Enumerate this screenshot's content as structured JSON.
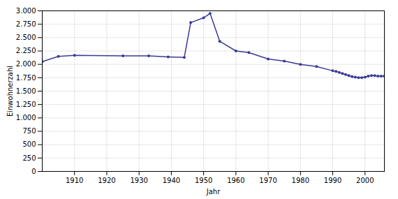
{
  "chart_data": {
    "type": "line",
    "x": [
      1900,
      1905,
      1910,
      1925,
      1933,
      1939,
      1944,
      1946,
      1950,
      1952,
      1955,
      1960,
      1964,
      1970,
      1975,
      1980,
      1985,
      1990,
      1991,
      1992,
      1993,
      1994,
      1995,
      1996,
      1997,
      1998,
      1999,
      2000,
      2001,
      2002,
      2003,
      2004,
      2005,
      2006
    ],
    "values": [
      2050,
      2150,
      2170,
      2160,
      2160,
      2140,
      2130,
      2780,
      2870,
      2950,
      2430,
      2250,
      2220,
      2100,
      2060,
      2000,
      1960,
      1880,
      1870,
      1850,
      1830,
      1810,
      1790,
      1770,
      1760,
      1750,
      1750,
      1760,
      1780,
      1790,
      1790,
      1780,
      1780,
      1780
    ],
    "color": "#3a3a9a",
    "marker": "circle",
    "xlabel": "Jahr",
    "ylabel": "Einwohnerzahl",
    "xlim": [
      1900,
      2006
    ],
    "ylim": [
      0,
      3000
    ],
    "xticks": [
      1910,
      1920,
      1930,
      1940,
      1950,
      1960,
      1970,
      1980,
      1990,
      2000
    ],
    "yticks": [
      0,
      250,
      500,
      750,
      {
        "value": 1000,
        "label": "1.000"
      },
      {
        "value": 1250,
        "label": "1.250"
      },
      {
        "value": 1500,
        "label": "1.500"
      },
      {
        "value": 1750,
        "label": "1.750"
      },
      {
        "value": 2000,
        "label": "2.000"
      },
      {
        "value": 2250,
        "label": "2.250"
      },
      {
        "value": 2500,
        "label": "2.500"
      },
      {
        "value": 2750,
        "label": "2.750"
      },
      {
        "value": 3000,
        "label": "3.000"
      }
    ],
    "grid": true
  }
}
